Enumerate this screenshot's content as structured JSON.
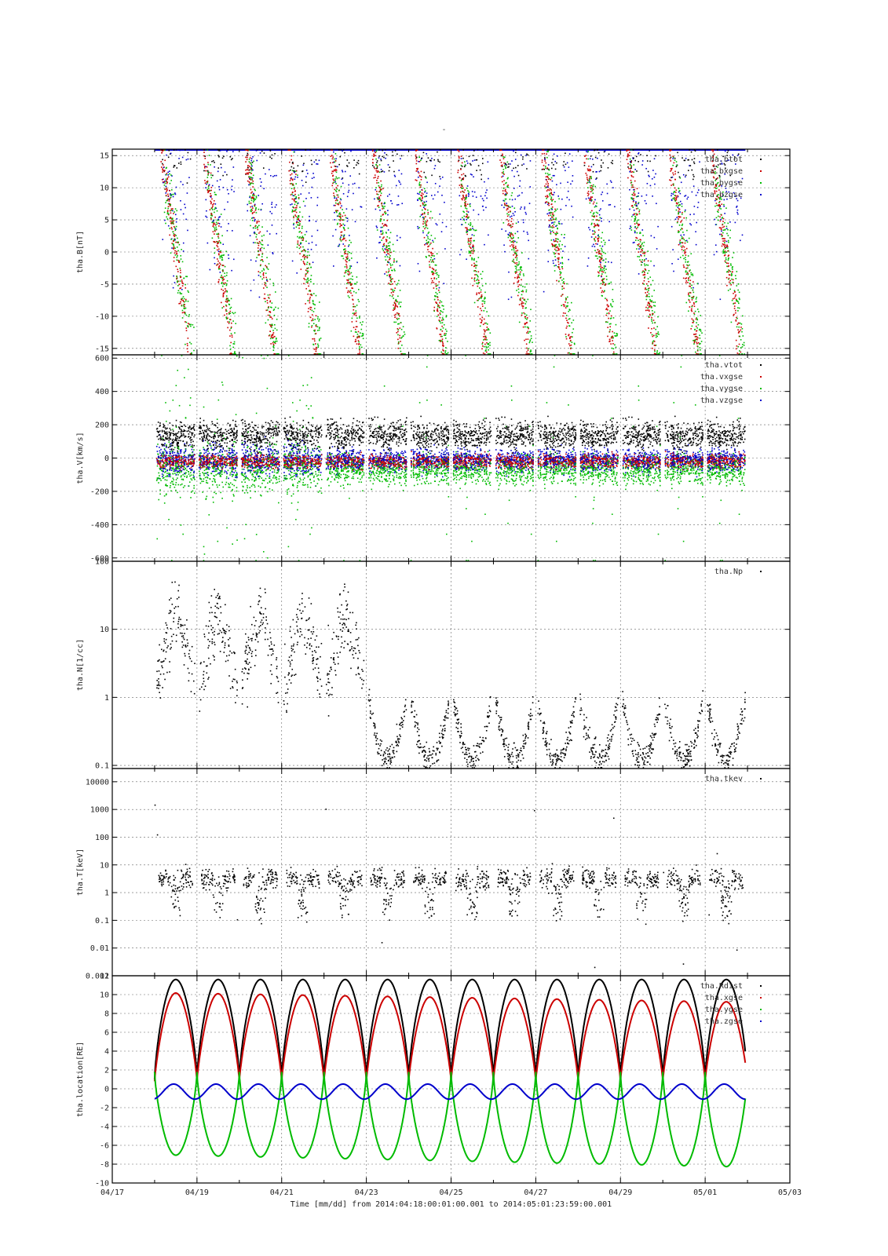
{
  "page": {
    "title": "-"
  },
  "chart_data": {
    "type": "multi-panel time series",
    "xaxis": {
      "tick_labels": [
        "04/17",
        "04/19",
        "04/21",
        "04/23",
        "04/25",
        "04/27",
        "04/29",
        "05/01",
        "05/03"
      ],
      "range_days": [
        0,
        16
      ],
      "label": "Time [mm/dd]  from 2014:04:18:00:01:00.001  to  2014:05:01:23:59:00.001"
    },
    "panels": [
      {
        "ylabel": "tha.B[nT]",
        "scale": "linear",
        "ylim": [
          -16,
          16
        ],
        "tick_values": [
          -15,
          -10,
          -5,
          0,
          5,
          10,
          15
        ],
        "tick_labels": [
          "-15",
          "-10",
          "-5",
          "0",
          "5",
          "10",
          "15"
        ],
        "legend": [
          "tha.btot",
          "tha.bxgse",
          "tha.bygse",
          "tha.bzgse"
        ],
        "colors": [
          "#000000",
          "#cc0000",
          "#00bb00",
          "#0000cc"
        ],
        "style": "scatter",
        "description": "Field components mostly scattered near saturation; curved streaks from +15 to -15 during magnetospheric passes"
      },
      {
        "ylabel": "tha.V[km/s]",
        "scale": "linear",
        "ylim": [
          -620,
          620
        ],
        "tick_values": [
          -600,
          -400,
          -200,
          0,
          200,
          400,
          600
        ],
        "tick_labels": [
          "-600",
          "-400",
          "-200",
          "0",
          "200",
          "400",
          "600"
        ],
        "legend": [
          "tha.vtot",
          "tha.vxgse",
          "tha.vygse",
          "tha.vzgse"
        ],
        "colors": [
          "#000000",
          "#cc0000",
          "#00bb00",
          "#0000cc"
        ],
        "style": "scatter",
        "description": "Clusters around 0 with vtot ~100-300 km/s; spiky excursions early in interval"
      },
      {
        "ylabel": "tha.N[1/cc]",
        "scale": "log",
        "ylim": [
          0.09,
          100
        ],
        "tick_values": [
          0.1,
          1,
          10,
          100
        ],
        "tick_labels": [
          "0.1",
          "1",
          "10",
          "100"
        ],
        "legend": [
          "tha.Np"
        ],
        "colors": [
          "#000000"
        ],
        "style": "scatter",
        "description": "Density 0.1-50 /cc with U-shaped dips each orbit"
      },
      {
        "ylabel": "tha.T[keV]",
        "scale": "log",
        "ylim": [
          0.001,
          30000
        ],
        "tick_values": [
          0.001,
          0.01,
          0.1,
          1,
          10,
          100,
          1000,
          10000
        ],
        "tick_labels": [
          "0.001",
          "0.01",
          "0.1",
          "1",
          "10",
          "100",
          "1000",
          "10000"
        ],
        "legend": [
          "tha.tkev"
        ],
        "colors": [
          "#000000"
        ],
        "style": "scatter",
        "description": "Temperature mostly 0.1-5 keV"
      },
      {
        "ylabel": "tha.location[RE]",
        "scale": "linear",
        "ylim": [
          -10,
          12
        ],
        "tick_values": [
          -10,
          -8,
          -6,
          -4,
          -2,
          0,
          2,
          4,
          6,
          8,
          10,
          12
        ],
        "tick_labels": [
          "-10",
          "-8",
          "-6",
          "-4",
          "-2",
          "0",
          "2",
          "4",
          "6",
          "8",
          "10",
          "12"
        ],
        "legend": [
          "tha.Rdist",
          "tha.xgse",
          "tha.ygse",
          "tha.zgse"
        ],
        "colors": [
          "#000000",
          "#cc0000",
          "#00bb00",
          "#0000cc"
        ],
        "style": "line",
        "orbit": {
          "start_day": 1.0,
          "end_day": 14.95,
          "period_days": 1.0,
          "rdist": {
            "max": 11.6,
            "min": 1.0
          },
          "xgse": {
            "max_start": 10.2,
            "max_end": 9.2,
            "min": 0.8
          },
          "ygse": {
            "min_start": -7.0,
            "min_end": -8.3,
            "max": 1.8
          },
          "zgse": {
            "max": 0.5,
            "min": -1.1
          }
        }
      }
    ]
  }
}
